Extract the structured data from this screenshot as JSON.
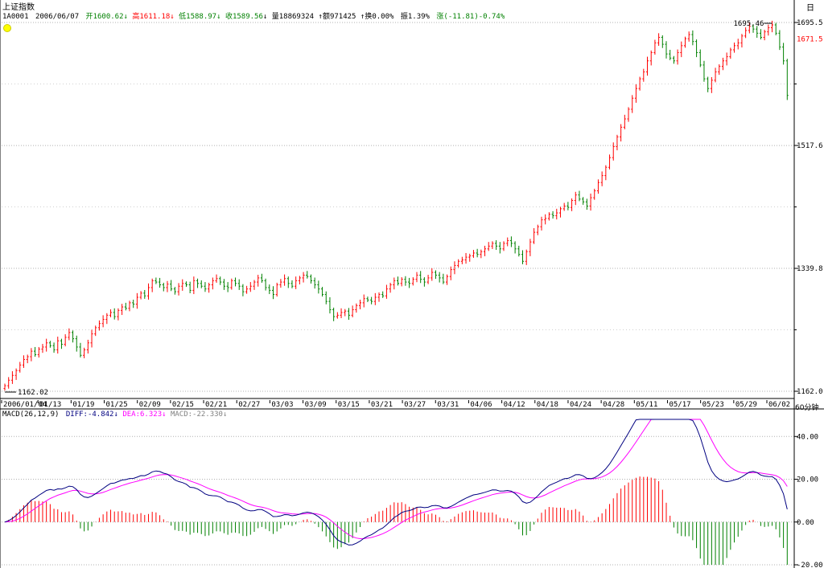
{
  "header": {
    "index_name": "上证指数",
    "code": "1A0001",
    "date": "2006/06/07",
    "open_label": "开",
    "open_value": "1600.62",
    "high_label": "高",
    "high_value": "1611.18",
    "low_label": "低",
    "low_value": "1588.97",
    "close_label": "收",
    "close_value": "1589.56",
    "volume_label": "量",
    "volume_value": "18869324",
    "amount_label": "额",
    "amount_value": "971425",
    "turnover_label": "换",
    "turnover_value": "0.00%",
    "amplitude_label": "振",
    "amplitude_value": "1.39%",
    "change_label": "涨",
    "change_value": "(-11.81)-0.74%",
    "arrow_down": "↓",
    "arrow_up": "↑"
  },
  "macd_header": {
    "name": "MACD(26,12,9)",
    "diff_label": "DIFF:",
    "diff_value": "-4.842",
    "dea_label": "DEA:",
    "dea_value": "6.323",
    "macd_label": "MACD:",
    "macd_value": "-22.330",
    "arrow": "↓"
  },
  "right_panel": {
    "mode_label": "日",
    "period_label": "60分钟"
  },
  "colors": {
    "up": "#ff0000",
    "down": "#008000",
    "diff": "#000080",
    "dea": "#ff00ff",
    "grid": "#b0b0b0",
    "text": "#000000"
  },
  "chart_data": [
    {
      "type": "candlestick",
      "title": "上证指数",
      "ylim": [
        1162.02,
        1695.5
      ],
      "y_ticks": [
        "1695.5",
        "1517.6",
        "1339.8",
        "1162.0"
      ],
      "current_price_label": "1671.5",
      "max_label": "1695.46",
      "min_label": "1162.02",
      "x_labels": [
        "2006/01/04",
        "01/13",
        "01/19",
        "01/25",
        "02/09",
        "02/15",
        "02/21",
        "02/27",
        "03/03",
        "03/09",
        "03/15",
        "03/21",
        "03/27",
        "03/31",
        "04/06",
        "04/12",
        "04/18",
        "04/24",
        "04/28",
        "05/11",
        "05/17",
        "05/23",
        "05/29",
        "06/02"
      ],
      "close_series": [
        1170,
        1178,
        1185,
        1192,
        1200,
        1208,
        1212,
        1220,
        1215,
        1223,
        1226,
        1232,
        1228,
        1222,
        1235,
        1230,
        1240,
        1247,
        1238,
        1226,
        1214,
        1222,
        1232,
        1245,
        1254,
        1260,
        1266,
        1272,
        1276,
        1270,
        1279,
        1284,
        1282,
        1290,
        1288,
        1298,
        1304,
        1300,
        1312,
        1322,
        1320,
        1316,
        1312,
        1317,
        1310,
        1306,
        1314,
        1318,
        1316,
        1308,
        1322,
        1318,
        1314,
        1310,
        1316,
        1322,
        1325,
        1320,
        1314,
        1312,
        1322,
        1318,
        1314,
        1306,
        1310,
        1314,
        1320,
        1326,
        1322,
        1312,
        1308,
        1302,
        1316,
        1320,
        1325,
        1318,
        1314,
        1322,
        1326,
        1330,
        1328,
        1322,
        1316,
        1310,
        1302,
        1292,
        1280,
        1270,
        1272,
        1276,
        1278,
        1272,
        1280,
        1286,
        1290,
        1296,
        1294,
        1292,
        1298,
        1302,
        1300,
        1310,
        1316,
        1322,
        1318,
        1324,
        1320,
        1318,
        1324,
        1330,
        1324,
        1320,
        1326,
        1334,
        1330,
        1326,
        1320,
        1328,
        1338,
        1344,
        1350,
        1352,
        1356,
        1358,
        1362,
        1360,
        1364,
        1368,
        1372,
        1376,
        1372,
        1368,
        1376,
        1380,
        1376,
        1368,
        1360,
        1350,
        1364,
        1378,
        1392,
        1400,
        1410,
        1412,
        1418,
        1416,
        1420,
        1426,
        1430,
        1428,
        1438,
        1446,
        1440,
        1436,
        1430,
        1442,
        1452,
        1464,
        1474,
        1486,
        1500,
        1516,
        1530,
        1544,
        1556,
        1570,
        1586,
        1600,
        1614,
        1624,
        1640,
        1652,
        1666,
        1674,
        1664,
        1650,
        1644,
        1640,
        1652,
        1662,
        1672,
        1678,
        1668,
        1652,
        1634,
        1614,
        1600,
        1612,
        1624,
        1632,
        1640,
        1646,
        1656,
        1662,
        1666,
        1676,
        1684,
        1690,
        1686,
        1680,
        1674,
        1682,
        1688,
        1692,
        1680,
        1660,
        1640,
        1590
      ],
      "macd": {
        "ylim": [
          -20,
          48
        ],
        "y_ticks": [
          "40.00",
          "20.00",
          "0.00",
          "-20.00"
        ],
        "diff_latest": -4.842,
        "dea_latest": 6.323,
        "macd_latest": -22.33
      }
    }
  ]
}
